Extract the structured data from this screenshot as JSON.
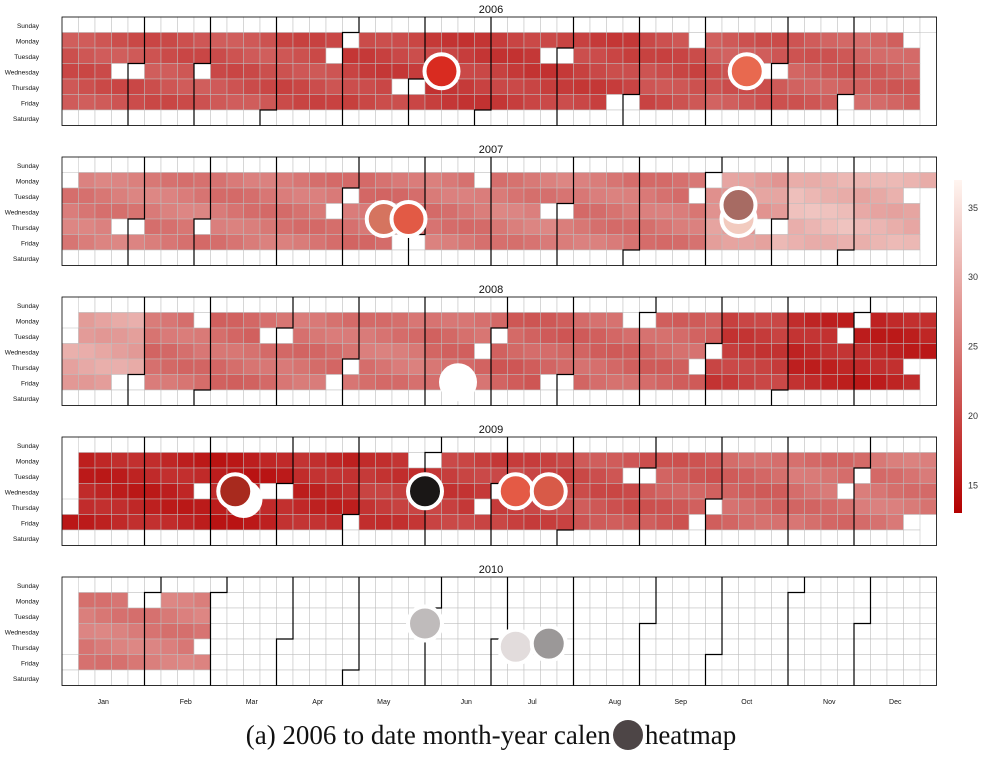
{
  "chart_data": {
    "type": "heatmap",
    "years": [
      "2006",
      "2007",
      "2008",
      "2009",
      "2010"
    ],
    "weekdays": [
      "Sunday",
      "Monday",
      "Tuesday",
      "Wednesday",
      "Thursday",
      "Friday",
      "Saturday"
    ],
    "months": [
      "Jan",
      "Feb",
      "Mar",
      "Apr",
      "May",
      "Jun",
      "Jul",
      "Aug",
      "Sep",
      "Oct",
      "Nov",
      "Dec"
    ],
    "colorbar": {
      "ticks": [
        35,
        30,
        25,
        20,
        15
      ],
      "range": [
        13,
        37
      ],
      "low_color": "#b30000",
      "high_color": "#fff5f0"
    },
    "year_values": [
      {
        "year": "2006",
        "base": 20.5,
        "months": [
          21,
          21,
          21,
          20.5,
          19.5,
          19,
          19,
          19.5,
          20.5,
          21.5,
          22,
          22.5
        ]
      },
      {
        "year": "2007",
        "base": 25,
        "months": [
          25,
          25,
          24.5,
          24.5,
          24,
          24.5,
          25,
          24.5,
          24.5,
          28,
          31,
          30
        ]
      },
      {
        "year": "2008",
        "base": 24.5,
        "months": [
          29,
          24,
          23.5,
          24,
          24.5,
          23.5,
          22.5,
          23,
          23,
          19,
          17,
          16.5
        ]
      },
      {
        "year": "2009",
        "base": 18.5,
        "months": [
          16.5,
          16.5,
          16,
          17,
          18.5,
          19,
          20,
          21,
          22,
          23,
          24,
          24.5
        ]
      },
      {
        "year": "2010",
        "base": 25,
        "months": [
          25,
          25,
          null,
          null,
          null,
          null,
          null,
          null,
          null,
          null,
          null,
          null
        ]
      }
    ],
    "title": "",
    "xlabel": "",
    "ylabel": ""
  },
  "overlay_markers": [
    {
      "year": "2006",
      "week": 22.5,
      "day": 3,
      "color": "#d92b20"
    },
    {
      "year": "2006",
      "week": 41,
      "day": 3,
      "color": "#e8694f"
    },
    {
      "year": "2007",
      "week": 19,
      "day": 3.5,
      "color": "#d5745f"
    },
    {
      "year": "2007",
      "week": 20.5,
      "day": 3.5,
      "color": "#e25a45"
    },
    {
      "year": "2007",
      "week": 40.5,
      "day": 3.5,
      "color": "#f2cbbf"
    },
    {
      "year": "2007",
      "week": 40.5,
      "day": 2.6,
      "color": "#a76b63"
    },
    {
      "year": "2008",
      "week": 23.5,
      "day": 5,
      "color": "#ffffff"
    },
    {
      "year": "2009",
      "week": 10.5,
      "day": 3.5,
      "color": "#ffffff"
    },
    {
      "year": "2009",
      "week": 10,
      "day": 3,
      "color": "#a82a1e"
    },
    {
      "year": "2009",
      "week": 21.5,
      "day": 3,
      "color": "#1a1716"
    },
    {
      "year": "2009",
      "week": 27,
      "day": 3,
      "color": "#e45a45"
    },
    {
      "year": "2009",
      "week": 29,
      "day": 3,
      "color": "#d85a48"
    },
    {
      "year": "2010",
      "week": 21.5,
      "day": 2.5,
      "color": "#bfbbbb"
    },
    {
      "year": "2010",
      "week": 27,
      "day": 4,
      "color": "#e2dcdc"
    },
    {
      "year": "2010",
      "week": 29,
      "day": 3.8,
      "color": "#9b9898"
    }
  ],
  "caption": {
    "left": "(a) 2006 to date month-year calen",
    "right": "heatmap"
  }
}
